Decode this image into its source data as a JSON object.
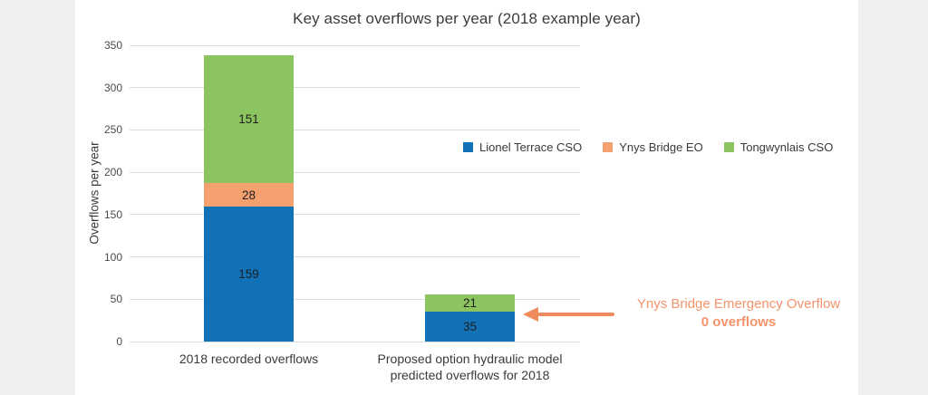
{
  "page": {
    "background_color": "#EFEFEF",
    "panel_color": "#FFFFFF"
  },
  "chart_data": {
    "type": "bar",
    "stacked": true,
    "title": "Key asset overflows per year (2018 example year)",
    "xlabel": "",
    "ylabel": "Overflows per year",
    "ylim": [
      0,
      350
    ],
    "yticks": [
      0,
      50,
      100,
      150,
      200,
      250,
      300,
      350
    ],
    "grid": true,
    "grid_color": "#DCDCDC",
    "legend_position": "right-of-plot-middle",
    "categories": [
      "2018 recorded overflows",
      "Proposed option hydraulic model predicted overflows for 2018"
    ],
    "series": [
      {
        "name": "Lionel Terrace CSO",
        "color": "#1272B8",
        "values": [
          159,
          35
        ]
      },
      {
        "name": "Ynys Bridge EO",
        "color": "#F4A06F",
        "values": [
          28,
          0
        ]
      },
      {
        "name": "Tongwynlais CSO",
        "color": "#8CC45F",
        "values": [
          151,
          21
        ]
      }
    ],
    "bar_totals": [
      338,
      56
    ],
    "value_labels_visible": true
  },
  "annotation": {
    "line1": "Ynys Bridge Emergency Overflow",
    "line2": "0 overflows",
    "text_color": "#F4936C",
    "arrow_color": "#F08B5C"
  }
}
